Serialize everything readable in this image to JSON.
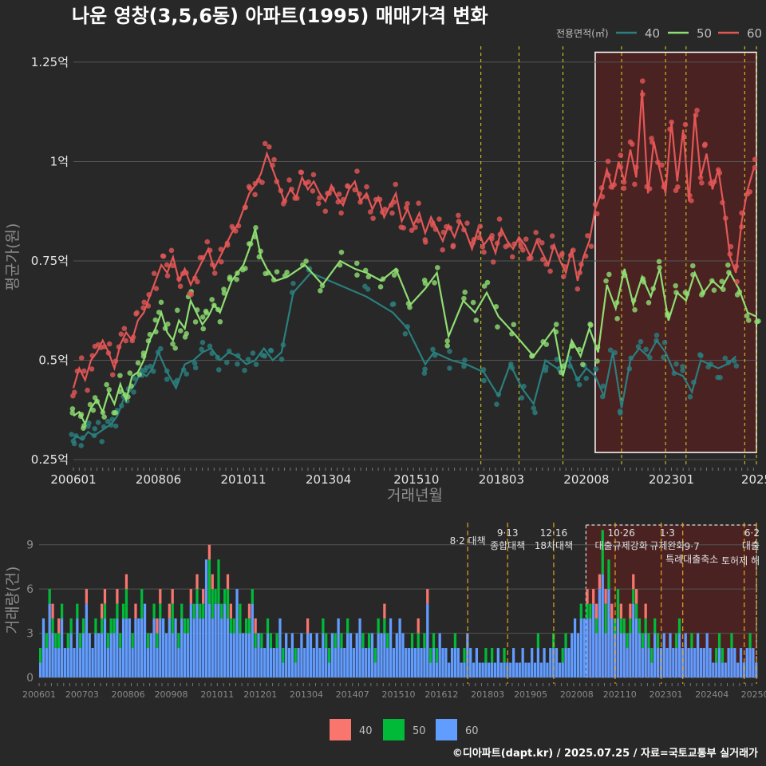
{
  "title": "나운 영창(3,5,6동) 아파트(1995) 매매가격 변화",
  "footer": "©디아파트(dapt.kr) / 2025.07.25 / 자료=국토교통부 실거래가",
  "colors": {
    "background": "#282828",
    "grid": "#555555",
    "s40": "#2a7f7f",
    "s50": "#8fde72",
    "s60": "#e35656",
    "policy": "#e6d21c",
    "policy_bottom": "#e8a31c",
    "highlight_fill": "#5a2020",
    "vol40": "#f8766d",
    "vol50": "#00ba38",
    "vol60": "#619cff"
  },
  "chart_data": [
    {
      "type": "line",
      "title": "나운 영창(3,5,6동) 아파트(1995) 매매가격 변화",
      "xlabel": "거래년월",
      "ylabel": "평균가(원)",
      "x_range": [
        "2006-01",
        "2025-06"
      ],
      "ylim": [
        0.23,
        1.29
      ],
      "y_unit": "억",
      "y_ticks": [
        "0.25억",
        "0.5억",
        "0.75억",
        "1억",
        "1.25억"
      ],
      "x_ticks": [
        "200601",
        "200806",
        "201011",
        "201304",
        "201510",
        "201803",
        "202008",
        "202301",
        "2025"
      ],
      "legend": {
        "title": "전용면적(㎡)",
        "items": [
          "40",
          "50",
          "60"
        ],
        "position": "top-right"
      },
      "grid": true,
      "highlight_period": [
        "2020-11",
        "2025-06"
      ],
      "policy_lines": [
        "2017-08",
        "2018-09",
        "2019-12",
        "2021-08",
        "2022-11",
        "2023-06",
        "2025-02",
        "2025-06"
      ],
      "series": [
        {
          "name": "40",
          "x": [
            "2006-01",
            "2006-02",
            "2006-04",
            "2006-06",
            "2006-08",
            "2006-10",
            "2006-12",
            "2007-02",
            "2007-04",
            "2007-06",
            "2007-08",
            "2007-10",
            "2007-12",
            "2008-02",
            "2008-04",
            "2008-06",
            "2008-09",
            "2008-12",
            "2009-03",
            "2009-06",
            "2009-09",
            "2009-12",
            "2010-03",
            "2010-06",
            "2010-09",
            "2010-12",
            "2011-03",
            "2011-06",
            "2011-09",
            "2011-12",
            "2012-04",
            "2012-10",
            "2014-05",
            "2015-02",
            "2015-07",
            "2016-01",
            "2016-04",
            "2016-10",
            "2017-03",
            "2017-09",
            "2018-02",
            "2018-06",
            "2018-10",
            "2019-02",
            "2019-06",
            "2019-10",
            "2020-02",
            "2020-05",
            "2020-08",
            "2020-11",
            "2021-02",
            "2021-05",
            "2021-08",
            "2021-11",
            "2022-02",
            "2022-05",
            "2022-08",
            "2022-11",
            "2023-02",
            "2023-05",
            "2023-08",
            "2023-11",
            "2024-02",
            "2024-05",
            "2024-08",
            "2024-11"
          ],
          "y": [
            0.3,
            0.31,
            0.3,
            0.32,
            0.31,
            0.32,
            0.33,
            0.34,
            0.36,
            0.4,
            0.42,
            0.44,
            0.47,
            0.46,
            0.48,
            0.52,
            0.47,
            0.43,
            0.49,
            0.5,
            0.52,
            0.53,
            0.5,
            0.52,
            0.51,
            0.49,
            0.5,
            0.53,
            0.5,
            0.52,
            0.67,
            0.72,
            0.66,
            0.62,
            0.58,
            0.49,
            0.52,
            0.5,
            0.49,
            0.47,
            0.41,
            0.49,
            0.43,
            0.39,
            0.5,
            0.48,
            0.5,
            0.45,
            0.48,
            0.46,
            0.41,
            0.52,
            0.38,
            0.5,
            0.53,
            0.51,
            0.55,
            0.52,
            0.47,
            0.46,
            0.42,
            0.5,
            0.49,
            0.48,
            0.49,
            0.51
          ]
        },
        {
          "name": "50",
          "x": [
            "2006-01",
            "2006-03",
            "2006-05",
            "2006-07",
            "2006-09",
            "2006-11",
            "2007-01",
            "2007-03",
            "2007-05",
            "2007-07",
            "2007-09",
            "2007-11",
            "2008-01",
            "2008-03",
            "2008-05",
            "2008-07",
            "2008-09",
            "2008-11",
            "2009-01",
            "2009-03",
            "2009-05",
            "2009-07",
            "2009-09",
            "2009-11",
            "2010-01",
            "2010-03",
            "2010-05",
            "2010-07",
            "2010-09",
            "2010-11",
            "2011-01",
            "2011-03",
            "2011-05",
            "2011-07",
            "2011-10",
            "2012-02",
            "2012-08",
            "2013-02",
            "2013-08",
            "2014-01",
            "2014-05",
            "2014-10",
            "2015-03",
            "2015-08",
            "2016-01",
            "2016-05",
            "2016-09",
            "2017-02",
            "2017-06",
            "2017-10",
            "2018-02",
            "2018-07",
            "2019-02",
            "2019-06",
            "2019-09",
            "2019-12",
            "2020-03",
            "2020-06",
            "2020-09",
            "2020-12",
            "2021-03",
            "2021-06",
            "2021-09",
            "2021-12",
            "2022-03",
            "2022-06",
            "2022-09",
            "2022-12",
            "2023-03",
            "2023-06",
            "2023-09",
            "2023-12",
            "2024-03",
            "2024-06",
            "2024-09",
            "2024-12",
            "2025-03",
            "2025-06"
          ],
          "y": [
            0.36,
            0.37,
            0.34,
            0.38,
            0.4,
            0.37,
            0.42,
            0.39,
            0.44,
            0.4,
            0.46,
            0.47,
            0.5,
            0.55,
            0.58,
            0.62,
            0.57,
            0.55,
            0.6,
            0.58,
            0.65,
            0.62,
            0.59,
            0.61,
            0.64,
            0.62,
            0.66,
            0.7,
            0.72,
            0.74,
            0.78,
            0.83,
            0.76,
            0.73,
            0.7,
            0.71,
            0.74,
            0.69,
            0.75,
            0.73,
            0.72,
            0.7,
            0.73,
            0.64,
            0.68,
            0.72,
            0.56,
            0.65,
            0.62,
            0.67,
            0.61,
            0.57,
            0.51,
            0.55,
            0.58,
            0.46,
            0.55,
            0.51,
            0.58,
            0.52,
            0.69,
            0.63,
            0.73,
            0.64,
            0.71,
            0.66,
            0.73,
            0.6,
            0.67,
            0.65,
            0.72,
            0.67,
            0.7,
            0.68,
            0.72,
            0.68,
            0.62,
            0.61
          ]
        },
        {
          "name": "60",
          "x": [
            "2006-01",
            "2006-03",
            "2006-05",
            "2006-07",
            "2006-09",
            "2006-11",
            "2007-01",
            "2007-03",
            "2007-05",
            "2007-07",
            "2007-09",
            "2007-11",
            "2008-01",
            "2008-03",
            "2008-05",
            "2008-07",
            "2008-09",
            "2008-11",
            "2009-01",
            "2009-03",
            "2009-05",
            "2009-07",
            "2009-09",
            "2009-11",
            "2010-01",
            "2010-03",
            "2010-05",
            "2010-07",
            "2010-09",
            "2010-11",
            "2011-01",
            "2011-03",
            "2011-05",
            "2011-07",
            "2011-09",
            "2011-11",
            "2012-01",
            "2012-03",
            "2012-05",
            "2012-07",
            "2012-09",
            "2012-11",
            "2013-01",
            "2013-03",
            "2013-05",
            "2013-07",
            "2013-09",
            "2013-11",
            "2014-01",
            "2014-03",
            "2014-05",
            "2014-07",
            "2014-09",
            "2014-11",
            "2015-01",
            "2015-03",
            "2015-05",
            "2015-07",
            "2015-09",
            "2015-11",
            "2016-01",
            "2016-03",
            "2016-05",
            "2016-07",
            "2016-09",
            "2016-11",
            "2017-01",
            "2017-03",
            "2017-05",
            "2017-07",
            "2017-09",
            "2017-11",
            "2018-01",
            "2018-03",
            "2018-05",
            "2018-07",
            "2018-09",
            "2018-11",
            "2019-01",
            "2019-03",
            "2019-05",
            "2019-07",
            "2019-09",
            "2019-11",
            "2020-01",
            "2020-03",
            "2020-05",
            "2020-07",
            "2020-09",
            "2020-11",
            "2021-01",
            "2021-03",
            "2021-05",
            "2021-07",
            "2021-09",
            "2021-11",
            "2022-01",
            "2022-03",
            "2022-05",
            "2022-07",
            "2022-09",
            "2022-11",
            "2023-01",
            "2023-03",
            "2023-05",
            "2023-07",
            "2023-09",
            "2023-11",
            "2024-01",
            "2024-03",
            "2024-05",
            "2024-07",
            "2024-09",
            "2024-11",
            "2025-01",
            "2025-03",
            "2025-05"
          ],
          "y": [
            0.43,
            0.48,
            0.45,
            0.5,
            0.52,
            0.55,
            0.52,
            0.48,
            0.54,
            0.57,
            0.55,
            0.6,
            0.62,
            0.66,
            0.7,
            0.74,
            0.72,
            0.76,
            0.7,
            0.73,
            0.69,
            0.72,
            0.75,
            0.78,
            0.73,
            0.76,
            0.79,
            0.82,
            0.84,
            0.88,
            0.92,
            0.94,
            0.97,
            1.02,
            0.98,
            0.94,
            0.9,
            0.93,
            0.91,
            0.96,
            0.93,
            0.95,
            0.92,
            0.9,
            0.94,
            0.91,
            0.89,
            0.93,
            0.95,
            0.9,
            0.92,
            0.88,
            0.91,
            0.86,
            0.89,
            0.92,
            0.85,
            0.88,
            0.84,
            0.87,
            0.82,
            0.86,
            0.83,
            0.8,
            0.84,
            0.81,
            0.85,
            0.82,
            0.78,
            0.83,
            0.79,
            0.81,
            0.77,
            0.83,
            0.8,
            0.78,
            0.81,
            0.79,
            0.76,
            0.8,
            0.77,
            0.74,
            0.79,
            0.75,
            0.72,
            0.78,
            0.7,
            0.76,
            0.8,
            0.88,
            0.92,
            0.98,
            0.93,
            1.0,
            0.95,
            1.03,
            0.96,
            1.18,
            0.92,
            1.05,
            0.98,
            0.92,
            1.1,
            0.95,
            1.08,
            0.9,
            1.12,
            0.96,
            1.02,
            0.93,
            0.98,
            0.88,
            0.76,
            0.72,
            0.85,
            0.93,
            0.98
          ]
        }
      ]
    },
    {
      "type": "bar",
      "stacked": true,
      "xlabel": "",
      "ylabel": "거래량(건)",
      "x_range": [
        "2006-01",
        "2025-06"
      ],
      "ylim": [
        0,
        10.5
      ],
      "y_ticks": [
        "0",
        "3",
        "6",
        "9"
      ],
      "x_ticks": [
        "200601",
        "200703",
        "200806",
        "200908",
        "201011",
        "201201",
        "201304",
        "201407",
        "201510",
        "201612",
        "201803",
        "201905",
        "202008",
        "202110",
        "202301",
        "202404",
        "20250"
      ],
      "legend": {
        "items": [
          "40",
          "50",
          "60"
        ],
        "position": "bottom"
      },
      "monthly_totals_by_year": {
        "2006": [
          2,
          4,
          3,
          6,
          5,
          3,
          4,
          5,
          2,
          3,
          4,
          2
        ],
        "2007": [
          5,
          3,
          4,
          6,
          3,
          2,
          4,
          3,
          5,
          6,
          3,
          4
        ],
        "2008": [
          4,
          6,
          3,
          5,
          7,
          4,
          3,
          5,
          4,
          6,
          5,
          3
        ],
        "2009": [
          3,
          5,
          4,
          6,
          4,
          3,
          5,
          6,
          4,
          3,
          5,
          4
        ],
        "2010": [
          4,
          6,
          5,
          7,
          5,
          6,
          8,
          9,
          7,
          6,
          8,
          5
        ],
        "2011": [
          6,
          7,
          5,
          4,
          6,
          5,
          3,
          4,
          5,
          6,
          4,
          3
        ],
        "2012": [
          3,
          2,
          4,
          3,
          2,
          3,
          4,
          2,
          3,
          2,
          3,
          2
        ],
        "2013": [
          2,
          3,
          2,
          4,
          3,
          2,
          3,
          2,
          4,
          3,
          2,
          3
        ],
        "2014": [
          3,
          4,
          3,
          2,
          4,
          3,
          2,
          3,
          4,
          3,
          2,
          3
        ],
        "2015": [
          3,
          2,
          4,
          3,
          5,
          3,
          4,
          2,
          3,
          4,
          3,
          2
        ],
        "2016": [
          2,
          3,
          2,
          4,
          2,
          3,
          6,
          2,
          3,
          2,
          3,
          2
        ],
        "2017": [
          2,
          1,
          2,
          3,
          2,
          1,
          2,
          3,
          2,
          1,
          2,
          1
        ],
        "2018": [
          1,
          2,
          1,
          2,
          1,
          2,
          1,
          2,
          1,
          1,
          2,
          1
        ],
        "2019": [
          1,
          2,
          1,
          1,
          2,
          1,
          3,
          1,
          2,
          1,
          2,
          3
        ],
        "2020": [
          2,
          1,
          2,
          3,
          2,
          3,
          4,
          3,
          5,
          4,
          6,
          5
        ],
        "2021": [
          6,
          5,
          7,
          10,
          6,
          8,
          5,
          4,
          6,
          5,
          4,
          3
        ],
        "2022": [
          5,
          7,
          6,
          4,
          3,
          5,
          3,
          2,
          4,
          3,
          2,
          3
        ],
        "2023": [
          2,
          3,
          2,
          3,
          4,
          2,
          3,
          2,
          3,
          2,
          3,
          2
        ],
        "2024": [
          2,
          3,
          2,
          1,
          2,
          3,
          2,
          1,
          2,
          3,
          2,
          1
        ],
        "2025": [
          2,
          1,
          2,
          3,
          2,
          1
        ]
      },
      "annotations": [
        {
          "x": "2017-08",
          "lines": [
            "8·2 대책"
          ]
        },
        {
          "x": "2018-09",
          "lines": [
            "9·13",
            "종합대책"
          ]
        },
        {
          "x": "2019-12",
          "lines": [
            "12·16",
            "18차대책"
          ]
        },
        {
          "x": "2021-10",
          "lines": [
            "10·26",
            "대출규제강화"
          ]
        },
        {
          "x": "2023-01",
          "lines": [
            "1·3",
            "규제완화"
          ]
        },
        {
          "x": "2023-09",
          "lines": [
            "9·7",
            "특례대출축소"
          ]
        },
        {
          "x": "2025-02",
          "lines": [
            "토허제 해"
          ]
        },
        {
          "x": "2025-06",
          "lines": [
            "6·2",
            "대출"
          ]
        }
      ]
    }
  ]
}
